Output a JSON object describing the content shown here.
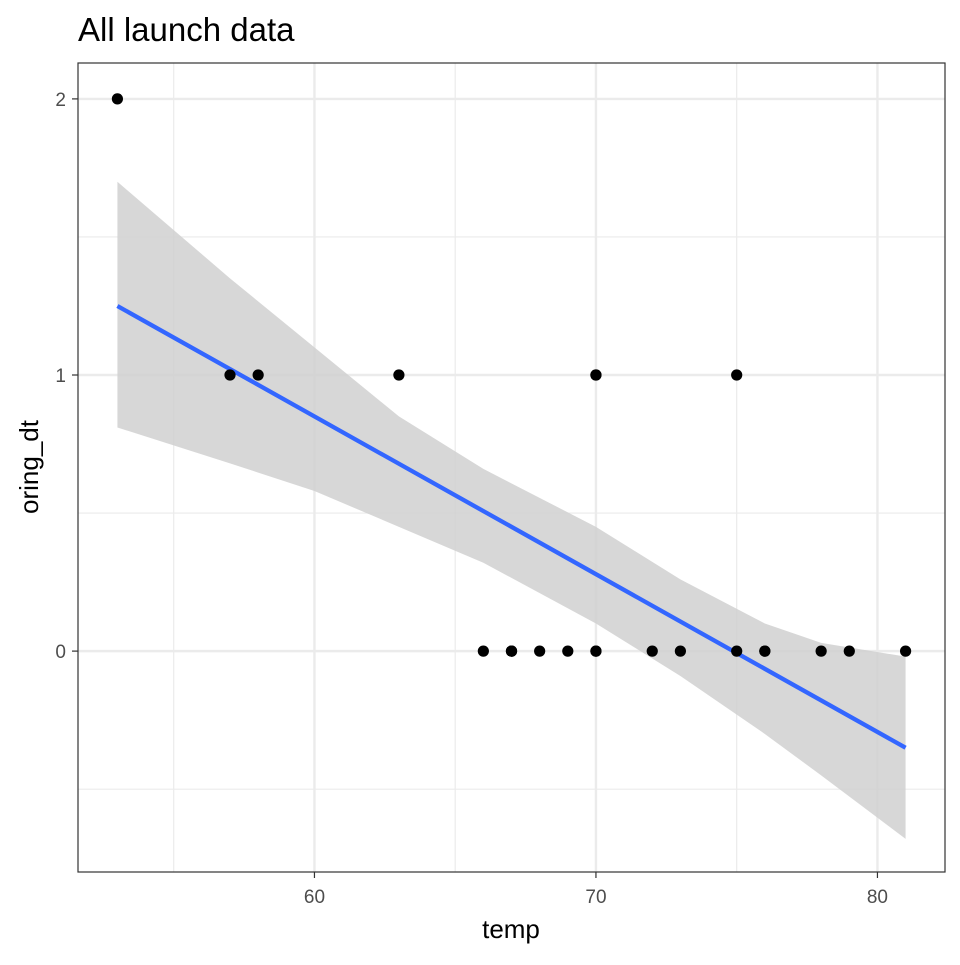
{
  "chart_data": {
    "type": "scatter",
    "title": "All launch data",
    "xlabel": "temp",
    "ylabel": "oring_dt",
    "xlim": [
      51.6,
      82.4
    ],
    "ylim": [
      -0.8,
      2.13
    ],
    "x_ticks": [
      60,
      70,
      80
    ],
    "x_tick_labels": [
      "60",
      "70",
      "80"
    ],
    "x_minor": [
      55,
      65,
      75
    ],
    "y_ticks": [
      0,
      1,
      2
    ],
    "y_tick_labels": [
      "0",
      "1",
      "2"
    ],
    "y_minor": [
      -0.5,
      0.5,
      1.5
    ],
    "grid": true,
    "points": [
      {
        "x": 53,
        "y": 2
      },
      {
        "x": 57,
        "y": 1
      },
      {
        "x": 58,
        "y": 1
      },
      {
        "x": 63,
        "y": 1
      },
      {
        "x": 66,
        "y": 0
      },
      {
        "x": 67,
        "y": 0
      },
      {
        "x": 67,
        "y": 0
      },
      {
        "x": 67,
        "y": 0
      },
      {
        "x": 68,
        "y": 0
      },
      {
        "x": 69,
        "y": 0
      },
      {
        "x": 70,
        "y": 0
      },
      {
        "x": 70,
        "y": 0
      },
      {
        "x": 70,
        "y": 1
      },
      {
        "x": 70,
        "y": 1
      },
      {
        "x": 72,
        "y": 0
      },
      {
        "x": 73,
        "y": 0
      },
      {
        "x": 75,
        "y": 0
      },
      {
        "x": 75,
        "y": 1
      },
      {
        "x": 76,
        "y": 0
      },
      {
        "x": 76,
        "y": 0
      },
      {
        "x": 78,
        "y": 0
      },
      {
        "x": 79,
        "y": 0
      },
      {
        "x": 81,
        "y": 0
      }
    ],
    "trend_line": {
      "method": "linear",
      "x": [
        53,
        81
      ],
      "y": [
        1.25,
        -0.35
      ],
      "color": "#3366ff"
    },
    "confidence_band": {
      "x": [
        53,
        57,
        60,
        63,
        66,
        70,
        73,
        76,
        78,
        81
      ],
      "lower": [
        0.81,
        0.68,
        0.58,
        0.45,
        0.32,
        0.1,
        -0.09,
        -0.3,
        -0.45,
        -0.68
      ],
      "upper": [
        1.7,
        1.35,
        1.1,
        0.85,
        0.66,
        0.45,
        0.26,
        0.1,
        0.03,
        -0.02
      ],
      "color": "#d0d0d0"
    },
    "point_color": "#000000",
    "gridline_color": "#ebebeb"
  }
}
